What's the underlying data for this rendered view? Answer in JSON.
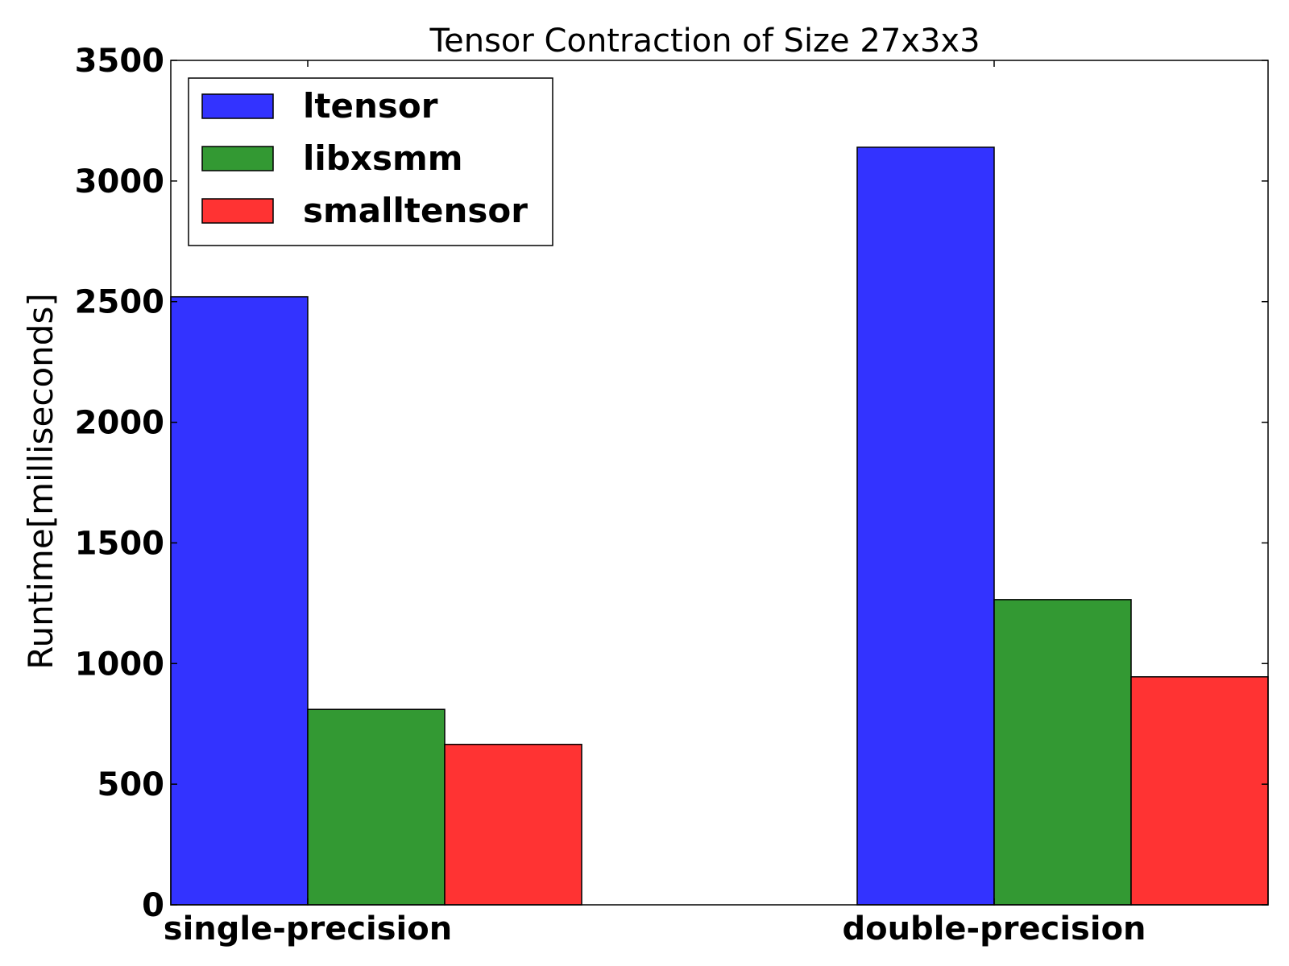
{
  "chart_data": {
    "type": "bar",
    "title": "Tensor Contraction of Size 27x3x3",
    "xlabel": "",
    "ylabel": "Runtime[milliseconds]",
    "categories": [
      "single-precision",
      "double-precision"
    ],
    "series": [
      {
        "name": "ltensor",
        "color": "#3333ff",
        "values": [
          2520,
          3140
        ]
      },
      {
        "name": "libxsmm",
        "color": "#339933",
        "values": [
          810,
          1265
        ]
      },
      {
        "name": "smalltensor",
        "color": "#ff3333",
        "values": [
          665,
          945
        ]
      }
    ],
    "ylim": [
      0,
      3500
    ],
    "yticks": [
      0,
      500,
      1000,
      1500,
      2000,
      2500,
      3000,
      3500
    ],
    "ytick_labels": [
      "0",
      "500",
      "1000",
      "1500",
      "2000",
      "2500",
      "3000",
      "3500"
    ],
    "grid": false,
    "legend_position": "top-left"
  }
}
